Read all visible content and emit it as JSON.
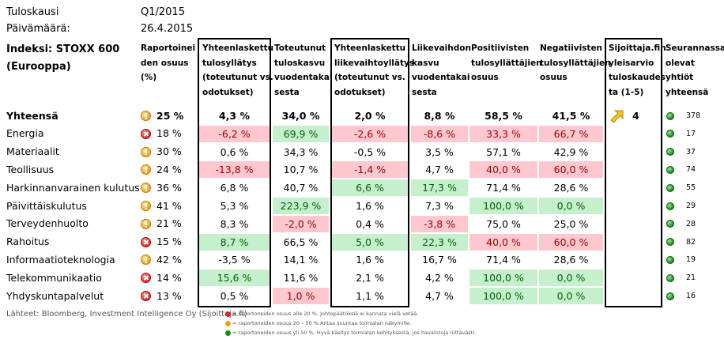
{
  "meta": {
    "season_label": "Tuloskausi",
    "season_value": "Q1/2015",
    "date_label": "Päivämäärä:",
    "date_value": "26.4.2015"
  },
  "index_title": "Indeksi: STOXX 600",
  "index_subtitle": "(Eurooppa)",
  "headers": {
    "reported": [
      "Raportoinei",
      "den osuus",
      "(%)"
    ],
    "eps": [
      "Yhteenlaskettu",
      "tulosyllätys",
      "(toteutunut vs.",
      "odotukset)"
    ],
    "eps_growth": [
      "Toteutunut",
      "tuloskasvu",
      "vuodentakai",
      "sesta"
    ],
    "rev": [
      "Yhteenlaskettu",
      "liikevaihtoyllätys",
      "(toteutunut vs.",
      "odotukset)"
    ],
    "rev_growth": [
      "Liikevaihdon",
      "kasvu",
      "vuodentakai",
      "sesta"
    ],
    "pos": [
      "Positiivisten",
      "tulosyllättäjien",
      "osuus"
    ],
    "neg": [
      "Negatiivisten",
      "tulosyllättäjien",
      "osuus"
    ],
    "rating": [
      "Sijoittaja.fin",
      "yleisarvio",
      "tuloskaudes",
      "ta (1-5)"
    ],
    "count": [
      "Seurannassa",
      "olevat",
      "yhtiöt",
      "yhteensä"
    ]
  },
  "rows": [
    {
      "name": "Yhteensä",
      "icon": "exclamation-icon",
      "reported": "25 %",
      "eps": "4,3 %",
      "eps_growth": "34,0 %",
      "rev": "2,0 %",
      "rev_growth": "8,8 %",
      "pos": "58,5 %",
      "neg": "41,5 %",
      "count": "378"
    },
    {
      "name": "Energia",
      "icon": "x-icon",
      "reported": "18 %",
      "eps": "-6,2 %",
      "eps_growth": "69,9 %",
      "rev": "-2,6 %",
      "rev_growth": "-8,6 %",
      "pos": "33,3 %",
      "neg": "66,7 %",
      "count": "17"
    },
    {
      "name": "Materiaalit",
      "icon": "exclamation-icon",
      "reported": "30 %",
      "eps": "0,6 %",
      "eps_growth": "34,3 %",
      "rev": "-0,5 %",
      "rev_growth": "3,5 %",
      "pos": "57,1 %",
      "neg": "42,9 %",
      "count": "37"
    },
    {
      "name": "Teollisuus",
      "icon": "exclamation-icon",
      "reported": "24 %",
      "eps": "-13,8 %",
      "eps_growth": "10,7 %",
      "rev": "-1,4 %",
      "rev_growth": "4,7 %",
      "pos": "40,0 %",
      "neg": "60,0 %",
      "count": "74"
    },
    {
      "name": "Harkinnanvarainen kulutus",
      "icon": "exclamation-icon",
      "reported": "36 %",
      "eps": "6,8 %",
      "eps_growth": "40,7 %",
      "rev": "6,6 %",
      "rev_growth": "17,3 %",
      "pos": "71,4 %",
      "neg": "28,6 %",
      "count": "55"
    },
    {
      "name": "Päivittäiskulutus",
      "icon": "exclamation-icon",
      "reported": "41 %",
      "eps": "5,3 %",
      "eps_growth": "223,9 %",
      "rev": "1,6 %",
      "rev_growth": "7,3 %",
      "pos": "100,0 %",
      "neg": "0,0 %",
      "count": "29"
    },
    {
      "name": "Terveydenhuolto",
      "icon": "exclamation-icon",
      "reported": "21 %",
      "eps": "8,3 %",
      "eps_growth": "-2,0 %",
      "rev": "0,4 %",
      "rev_growth": "-3,8 %",
      "pos": "75,0 %",
      "neg": "25,0 %",
      "count": "28"
    },
    {
      "name": "Rahoitus",
      "icon": "x-icon",
      "reported": "15 %",
      "eps": "8,7 %",
      "eps_growth": "66,5 %",
      "rev": "5,0 %",
      "rev_growth": "22,3 %",
      "pos": "40,0 %",
      "neg": "60,0 %",
      "count": "82"
    },
    {
      "name": "Informaatioteknologia",
      "icon": "exclamation-icon",
      "reported": "42 %",
      "eps": "-3,5 %",
      "eps_growth": "14,1 %",
      "rev": "1,6 %",
      "rev_growth": "16,7 %",
      "pos": "71,4 %",
      "neg": "28,6 %",
      "count": "19"
    },
    {
      "name": "Telekommunikaatio",
      "icon": "x-icon",
      "reported": "14 %",
      "eps": "15,6 %",
      "eps_growth": "11,6 %",
      "rev": "2,1 %",
      "rev_growth": "4,2 %",
      "pos": "100,0 %",
      "neg": "0,0 %",
      "count": "21"
    },
    {
      "name": "Yhdyskuntapalvelut",
      "icon": "x-icon",
      "reported": "13 %",
      "eps": "0,5 %",
      "eps_growth": "1,0 %",
      "rev": "1,1 %",
      "rev_growth": "4,7 %",
      "pos": "100,0 %",
      "neg": "0,0 %",
      "count": "16"
    }
  ],
  "rating": {
    "value": "4",
    "icon": "arrow-up-right-icon"
  },
  "footer": {
    "source": "Lähteet: Bloomberg, Investment Intelligence Oy (Sijoittaja.fi)",
    "legend_red": "= raportoneiden osuus alle 20 %. Johtopäätöksiä ei kannata vielä vetää.",
    "legend_orange": "= raportoneiden osuus 20 – 50 %.Antaa suuntaa toimialan näkymille.",
    "legend_green": "= raportoneiden osuus yli 50 %. Hyvä käsitys toimialan kehityksestä, jos havaintoja riittävästi."
  },
  "colors": {
    "neg_bg": "#ffc7ce",
    "neg_fg": "#9c0006",
    "pos_bg": "#c6efce",
    "pos_fg": "#006100"
  }
}
